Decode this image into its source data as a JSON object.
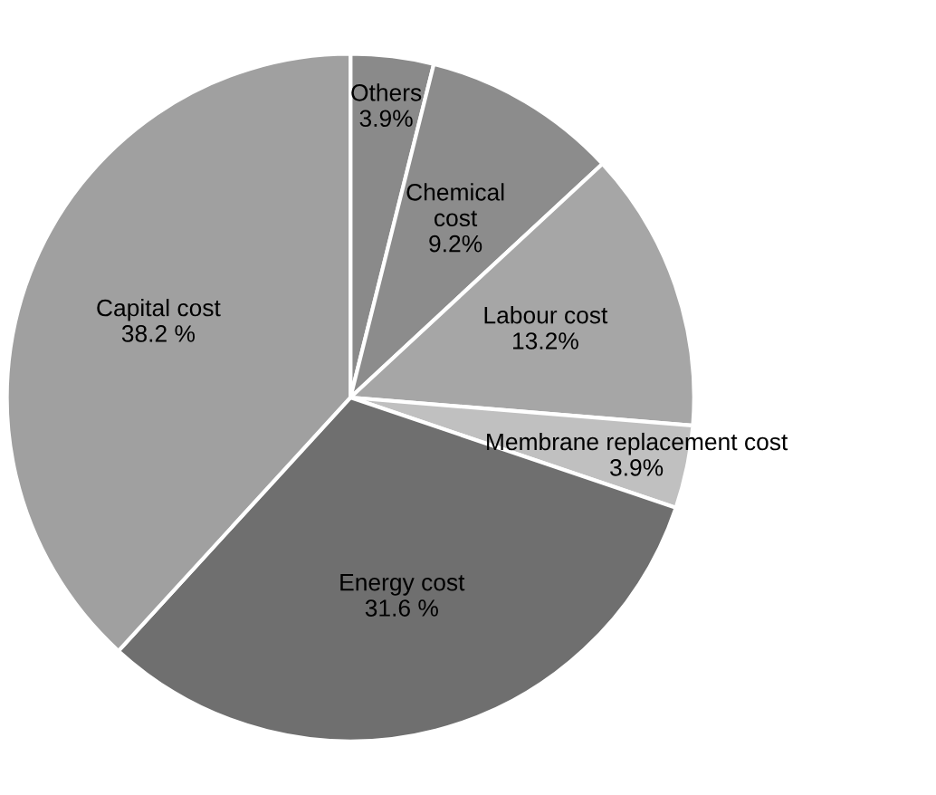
{
  "chart_data": {
    "type": "pie",
    "categories": [
      "Others",
      "Chemical\ncost",
      "Labour cost",
      "Membrane replacement cost",
      "Energy cost",
      "Capital cost"
    ],
    "values": [
      3.9,
      9.2,
      13.2,
      3.9,
      31.6,
      38.2
    ],
    "value_labels": [
      "3.9%",
      "9.2%",
      "13.2%",
      "3.9%",
      "31.6 %",
      "38.2 %"
    ],
    "colors": [
      "#8a8a8a",
      "#8c8c8c",
      "#a6a6a6",
      "#c0c0c0",
      "#6f6f6f",
      "#a0a0a0"
    ],
    "legend": false
  }
}
